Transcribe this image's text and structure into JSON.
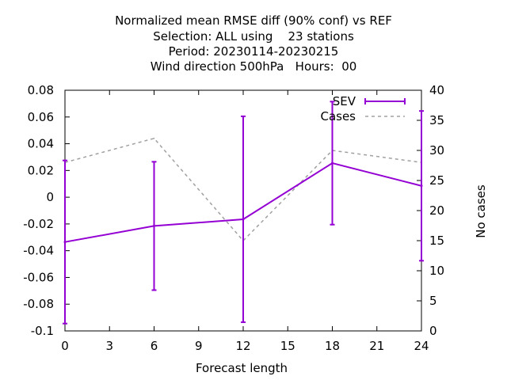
{
  "chart_data": {
    "type": "line",
    "title_lines": [
      "Normalized mean RMSE diff (90% conf) vs REF",
      "Selection: ALL using    23 stations",
      "Period: 20230114-20230215",
      "Wind direction 500hPa   Hours:  00"
    ],
    "xlabel": "Forecast length",
    "ylabel": "",
    "y2label": "No cases",
    "xlim": [
      0,
      24
    ],
    "ylim": [
      -0.1,
      0.08
    ],
    "y2lim": [
      0,
      40
    ],
    "xticks": [
      0,
      3,
      6,
      9,
      12,
      15,
      18,
      21,
      24
    ],
    "yticks": [
      -0.1,
      -0.08,
      -0.06,
      -0.04,
      -0.02,
      0,
      0.02,
      0.04,
      0.06,
      0.08
    ],
    "ytick_labels": [
      "-0.1",
      "-0.08",
      "-0.06",
      "-0.04",
      "-0.02",
      "0",
      "0.02",
      "0.04",
      "0.06",
      "0.08"
    ],
    "y2ticks": [
      0,
      5,
      10,
      15,
      20,
      25,
      30,
      35,
      40
    ],
    "grid": false,
    "legend_position": "top-right",
    "series": [
      {
        "name": "SEV",
        "axis": "y",
        "color": "#9400d3",
        "style": "solid",
        "x": [
          0,
          6,
          12,
          18,
          24
        ],
        "values": [
          -0.0335,
          -0.0215,
          -0.0165,
          0.0255,
          0.0085
        ],
        "err_low": [
          -0.0945,
          -0.0695,
          -0.0935,
          -0.0205,
          -0.0475
        ],
        "err_high": [
          0.0275,
          0.0265,
          0.0605,
          0.0715,
          0.0645
        ]
      },
      {
        "name": "Cases",
        "axis": "y2",
        "color": "#a0a0a0",
        "style": "dashed",
        "x": [
          0,
          6,
          12,
          18,
          24
        ],
        "values": [
          28,
          32,
          15,
          30,
          28
        ]
      }
    ]
  }
}
